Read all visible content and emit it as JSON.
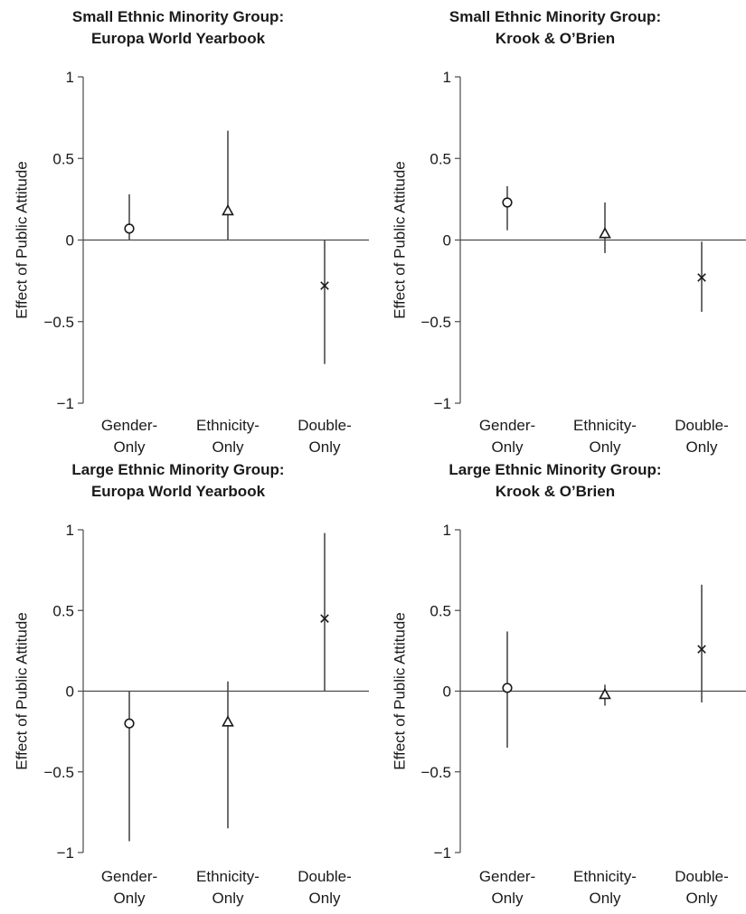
{
  "chart_data": [
    {
      "type": "scatter",
      "title": [
        "Small Ethnic Minority Group:",
        "Europa World Yearbook"
      ],
      "ylabel": "Effect of Public Attitude",
      "categories": [
        [
          "Gender-",
          "Only"
        ],
        [
          "Ethnicity-",
          "Only"
        ],
        [
          "Double-",
          "Only"
        ]
      ],
      "markers": [
        "circle",
        "triangle",
        "x"
      ],
      "ylim": [
        -1,
        1
      ],
      "yticks": [
        1,
        0.5,
        0,
        -0.5,
        -1
      ],
      "ytick_labels": [
        "1",
        "0.5",
        "0",
        "−0.5",
        "−1"
      ],
      "points": [
        {
          "category": "Gender-Only",
          "estimate": 0.07,
          "lower": 0.0,
          "upper": 0.28
        },
        {
          "category": "Ethnicity-Only",
          "estimate": 0.18,
          "lower": 0.0,
          "upper": 0.67
        },
        {
          "category": "Double-Only",
          "estimate": -0.28,
          "lower": -0.76,
          "upper": 0.0
        }
      ]
    },
    {
      "type": "scatter",
      "title": [
        "Small Ethnic Minority Group:",
        "Krook & O’Brien"
      ],
      "ylabel": "Effect of Public Attitude",
      "categories": [
        [
          "Gender-",
          "Only"
        ],
        [
          "Ethnicity-",
          "Only"
        ],
        [
          "Double-",
          "Only"
        ]
      ],
      "markers": [
        "circle",
        "triangle",
        "x"
      ],
      "ylim": [
        -1,
        1
      ],
      "yticks": [
        1,
        0.5,
        0,
        -0.5,
        -1
      ],
      "ytick_labels": [
        "1",
        "0.5",
        "0",
        "−0.5",
        "−1"
      ],
      "points": [
        {
          "category": "Gender-Only",
          "estimate": 0.23,
          "lower": 0.06,
          "upper": 0.33
        },
        {
          "category": "Ethnicity-Only",
          "estimate": 0.04,
          "lower": -0.08,
          "upper": 0.23
        },
        {
          "category": "Double-Only",
          "estimate": -0.23,
          "lower": -0.44,
          "upper": -0.01
        }
      ]
    },
    {
      "type": "scatter",
      "title": [
        "Large Ethnic Minority Group:",
        "Europa World Yearbook"
      ],
      "ylabel": "Effect of Public Attitude",
      "categories": [
        [
          "Gender-",
          "Only"
        ],
        [
          "Ethnicity-",
          "Only"
        ],
        [
          "Double-",
          "Only"
        ]
      ],
      "markers": [
        "circle",
        "triangle",
        "x"
      ],
      "ylim": [
        -1,
        1
      ],
      "yticks": [
        1,
        0.5,
        0,
        -0.5,
        -1
      ],
      "ytick_labels": [
        "1",
        "0.5",
        "0",
        "−0.5",
        "−1"
      ],
      "points": [
        {
          "category": "Gender-Only",
          "estimate": -0.2,
          "lower": -0.93,
          "upper": 0.0
        },
        {
          "category": "Ethnicity-Only",
          "estimate": -0.19,
          "lower": -0.85,
          "upper": 0.06
        },
        {
          "category": "Double-Only",
          "estimate": 0.45,
          "lower": 0.0,
          "upper": 0.98
        }
      ]
    },
    {
      "type": "scatter",
      "title": [
        "Large Ethnic Minority Group:",
        "Krook & O’Brien"
      ],
      "ylabel": "Effect of Public Attitude",
      "categories": [
        [
          "Gender-",
          "Only"
        ],
        [
          "Ethnicity-",
          "Only"
        ],
        [
          "Double-",
          "Only"
        ]
      ],
      "markers": [
        "circle",
        "triangle",
        "x"
      ],
      "ylim": [
        -1,
        1
      ],
      "yticks": [
        1,
        0.5,
        0,
        -0.5,
        -1
      ],
      "ytick_labels": [
        "1",
        "0.5",
        "0",
        "−0.5",
        "−1"
      ],
      "points": [
        {
          "category": "Gender-Only",
          "estimate": 0.02,
          "lower": -0.35,
          "upper": 0.37
        },
        {
          "category": "Ethnicity-Only",
          "estimate": -0.02,
          "lower": -0.09,
          "upper": 0.04
        },
        {
          "category": "Double-Only",
          "estimate": 0.26,
          "lower": -0.07,
          "upper": 0.66
        }
      ]
    }
  ]
}
